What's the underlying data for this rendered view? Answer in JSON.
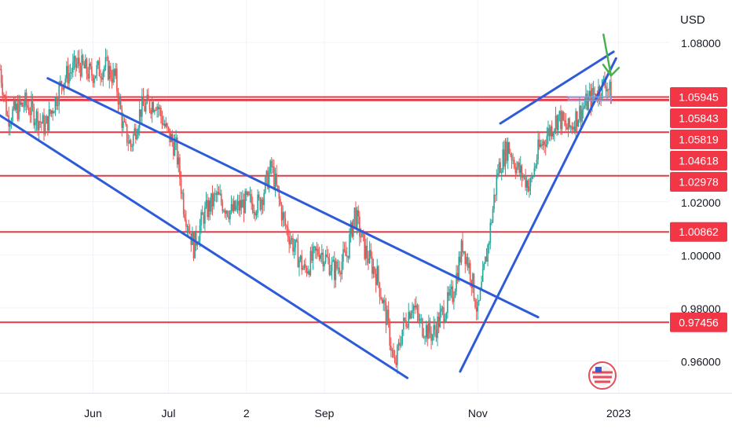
{
  "chart_data": {
    "type": "candlestick",
    "instrument_unit": "USD",
    "y_axis": {
      "range": [
        0.948,
        1.096
      ],
      "ticks": [
        {
          "value": 1.08,
          "label": "1.08000"
        },
        {
          "value": 1.02,
          "label": "1.02000"
        },
        {
          "value": 1.0,
          "label": "1.00000"
        },
        {
          "value": 0.98,
          "label": "0.98000"
        },
        {
          "value": 0.96,
          "label": "0.96000"
        }
      ]
    },
    "x_axis": {
      "ticks": [
        {
          "label": "Jun",
          "day": 37
        },
        {
          "label": "Jul",
          "day": 67
        },
        {
          "label": "2",
          "day": 98
        },
        {
          "label": "Sep",
          "day": 129
        },
        {
          "label": "Nov",
          "day": 190
        },
        {
          "label": "2023",
          "day": 246
        }
      ],
      "day_range": [
        0,
        268
      ]
    },
    "grid": true,
    "horizontal_levels": [
      {
        "value": 1.05945,
        "label": "1.05945"
      },
      {
        "value": 1.05843,
        "label": "1.05843"
      },
      {
        "value": 1.05819,
        "label": "1.05819"
      },
      {
        "value": 1.04618,
        "label": "1.04618"
      },
      {
        "value": 1.02978,
        "label": "1.02978"
      },
      {
        "value": 1.00862,
        "label": "1.00862"
      },
      {
        "value": 0.97456,
        "label": "0.97456"
      }
    ],
    "trendlines": [
      {
        "from": {
          "day": 19,
          "price": 1.0665
        },
        "to": {
          "day": 214,
          "price": 0.9765
        }
      },
      {
        "from": {
          "day": 0,
          "price": 1.0525
        },
        "to": {
          "day": 162,
          "price": 0.9536
        }
      },
      {
        "from": {
          "day": 183,
          "price": 0.956
        },
        "to": {
          "day": 245,
          "price": 1.074
        }
      },
      {
        "from": {
          "day": 199,
          "price": 1.0495
        },
        "to": {
          "day": 244,
          "price": 1.0765
        }
      }
    ],
    "range_box": {
      "day_start": 226,
      "day_end": 243,
      "top": 1.0595,
      "bottom": 1.0582
    },
    "arrow": {
      "from": {
        "day": 240,
        "price": 1.083
      },
      "to": {
        "day": 243,
        "price": 1.0675
      }
    },
    "price_series": [
      {
        "day": 0,
        "price": 1.07
      },
      {
        "day": 3,
        "price": 1.052
      },
      {
        "day": 10,
        "price": 1.057
      },
      {
        "day": 18,
        "price": 1.048
      },
      {
        "day": 25,
        "price": 1.066
      },
      {
        "day": 31,
        "price": 1.072
      },
      {
        "day": 36,
        "price": 1.068
      },
      {
        "day": 42,
        "price": 1.071
      },
      {
        "day": 46,
        "price": 1.066
      },
      {
        "day": 49,
        "price": 1.048
      },
      {
        "day": 52,
        "price": 1.041
      },
      {
        "day": 56,
        "price": 1.055
      },
      {
        "day": 62,
        "price": 1.058
      },
      {
        "day": 66,
        "price": 1.047
      },
      {
        "day": 70,
        "price": 1.04
      },
      {
        "day": 73,
        "price": 1.019
      },
      {
        "day": 77,
        "price": 1.003
      },
      {
        "day": 81,
        "price": 1.015
      },
      {
        "day": 86,
        "price": 1.022
      },
      {
        "day": 92,
        "price": 1.016
      },
      {
        "day": 98,
        "price": 1.02
      },
      {
        "day": 103,
        "price": 1.019
      },
      {
        "day": 108,
        "price": 1.033
      },
      {
        "day": 113,
        "price": 1.012
      },
      {
        "day": 117,
        "price": 1.003
      },
      {
        "day": 121,
        "price": 0.994
      },
      {
        "day": 127,
        "price": 1.002
      },
      {
        "day": 133,
        "price": 0.994
      },
      {
        "day": 138,
        "price": 1.0
      },
      {
        "day": 141,
        "price": 1.016
      },
      {
        "day": 145,
        "price": 1.002
      },
      {
        "day": 150,
        "price": 0.992
      },
      {
        "day": 154,
        "price": 0.975
      },
      {
        "day": 157,
        "price": 0.957
      },
      {
        "day": 160,
        "price": 0.972
      },
      {
        "day": 164,
        "price": 0.982
      },
      {
        "day": 167,
        "price": 0.974
      },
      {
        "day": 172,
        "price": 0.97
      },
      {
        "day": 176,
        "price": 0.978
      },
      {
        "day": 180,
        "price": 0.985
      },
      {
        "day": 184,
        "price": 1.004
      },
      {
        "day": 187,
        "price": 0.994
      },
      {
        "day": 190,
        "price": 0.978
      },
      {
        "day": 194,
        "price": 1.003
      },
      {
        "day": 198,
        "price": 1.032
      },
      {
        "day": 202,
        "price": 1.041
      },
      {
        "day": 206,
        "price": 1.032
      },
      {
        "day": 211,
        "price": 1.026
      },
      {
        "day": 214,
        "price": 1.039
      },
      {
        "day": 218,
        "price": 1.046
      },
      {
        "day": 222,
        "price": 1.052
      },
      {
        "day": 226,
        "price": 1.047
      },
      {
        "day": 230,
        "price": 1.053
      },
      {
        "day": 234,
        "price": 1.058
      },
      {
        "day": 238,
        "price": 1.062
      },
      {
        "day": 241,
        "price": 1.065
      },
      {
        "day": 243,
        "price": 1.06
      }
    ]
  },
  "colors": {
    "bull": "#26a69a",
    "bear": "#ef5350",
    "level": "#e53947",
    "trend": "#2e5bd8",
    "arrow": "#4caf50",
    "grid": "#f0f3fa",
    "axis_text": "#131722",
    "label_bg": "#f23645",
    "label_text": "#ffffff"
  },
  "icons": {
    "flag": "us-eu-flags-icon"
  }
}
